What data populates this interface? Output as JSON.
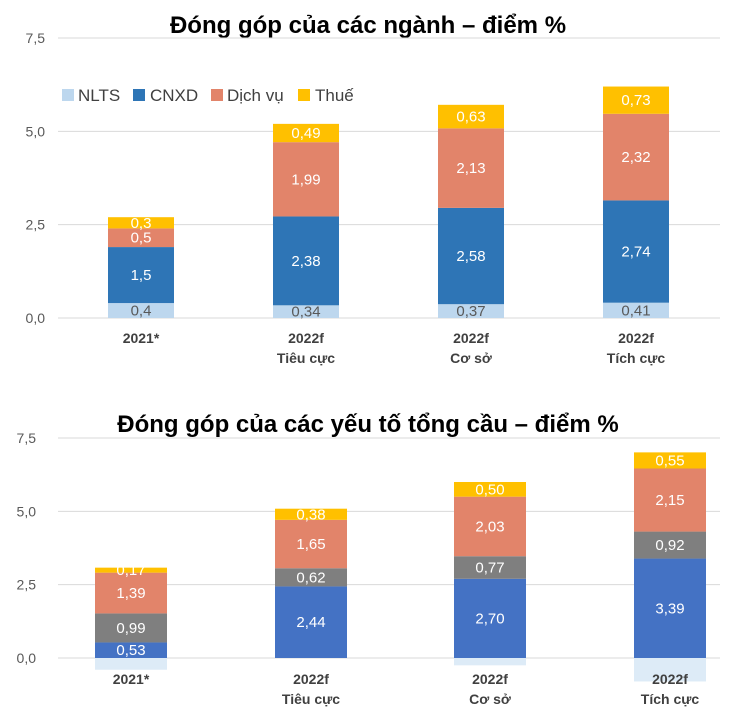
{
  "chart_data": [
    {
      "type": "bar",
      "stacked": true,
      "title": "Đóng góp của các ngành – điểm %",
      "categories": [
        [
          "2021*"
        ],
        [
          "2022f",
          "Tiêu cực"
        ],
        [
          "2022f",
          "Cơ sở"
        ],
        [
          "2022f",
          "Tích cực"
        ]
      ],
      "yticks": [
        "0,0",
        "2,5",
        "5,0",
        "7,5"
      ],
      "ylim": [
        0,
        7.5
      ],
      "grid": true,
      "legend_position": "top-left",
      "series": [
        {
          "name": "NLTS",
          "color": "#bdd7ee",
          "labelColor": "#595959",
          "values": [
            0.4,
            0.34,
            0.37,
            0.41
          ],
          "labels": [
            "0,4",
            "0,34",
            "0,37",
            "0,41"
          ]
        },
        {
          "name": "CNXD",
          "color": "#2e75b6",
          "labelColor": "#ffffff",
          "values": [
            1.5,
            2.38,
            2.58,
            2.74
          ],
          "labels": [
            "1,5",
            "2,38",
            "2,58",
            "2,74"
          ]
        },
        {
          "name": "Dịch vụ",
          "color": "#e2846a",
          "labelColor": "#ffffff",
          "values": [
            0.5,
            1.99,
            2.13,
            2.32
          ],
          "labels": [
            "0,5",
            "1,99",
            "2,13",
            "2,32"
          ]
        },
        {
          "name": "Thuế",
          "color": "#ffc000",
          "labelColor": "#ffffff",
          "values": [
            0.3,
            0.49,
            0.63,
            0.73
          ],
          "labels": [
            "0,3",
            "0,49",
            "0,63",
            "0,73"
          ]
        }
      ]
    },
    {
      "type": "bar",
      "stacked": true,
      "title": "Đóng góp của các yếu tố tổng cầu – điểm %",
      "categories": [
        [
          "2021*"
        ],
        [
          "2022f",
          "Tiêu cực"
        ],
        [
          "2022f",
          "Cơ sở"
        ],
        [
          "2022f",
          "Tích cực"
        ]
      ],
      "yticks": [
        "0,0",
        "2,5",
        "5,0",
        "7,5"
      ],
      "ylim": [
        0,
        7.5
      ],
      "grid": true,
      "series": [
        {
          "color": "#ddebf7",
          "labelColor": "#595959",
          "values": [
            -0.4,
            0.0,
            -0.25,
            -0.8
          ],
          "labels": [
            "",
            "",
            "",
            ""
          ]
        },
        {
          "color": "#4472c4",
          "labelColor": "#ffffff",
          "values": [
            0.53,
            2.44,
            2.7,
            3.39
          ],
          "labels": [
            "0,53",
            "2,44",
            "2,70",
            "3,39"
          ]
        },
        {
          "color": "#7f7f7f",
          "labelColor": "#ffffff",
          "values": [
            0.99,
            0.62,
            0.77,
            0.92
          ],
          "labels": [
            "0,99",
            "0,62",
            "0,77",
            "0,92"
          ]
        },
        {
          "color": "#e2846a",
          "labelColor": "#ffffff",
          "values": [
            1.39,
            1.65,
            2.03,
            2.15
          ],
          "labels": [
            "1,39",
            "1,65",
            "2,03",
            "2,15"
          ]
        },
        {
          "color": "#ffc000",
          "labelColor": "#ffffff",
          "values": [
            0.17,
            0.38,
            0.5,
            0.55
          ],
          "labels": [
            "0,17",
            "0,38",
            "0,50",
            "0,55"
          ]
        }
      ]
    }
  ]
}
